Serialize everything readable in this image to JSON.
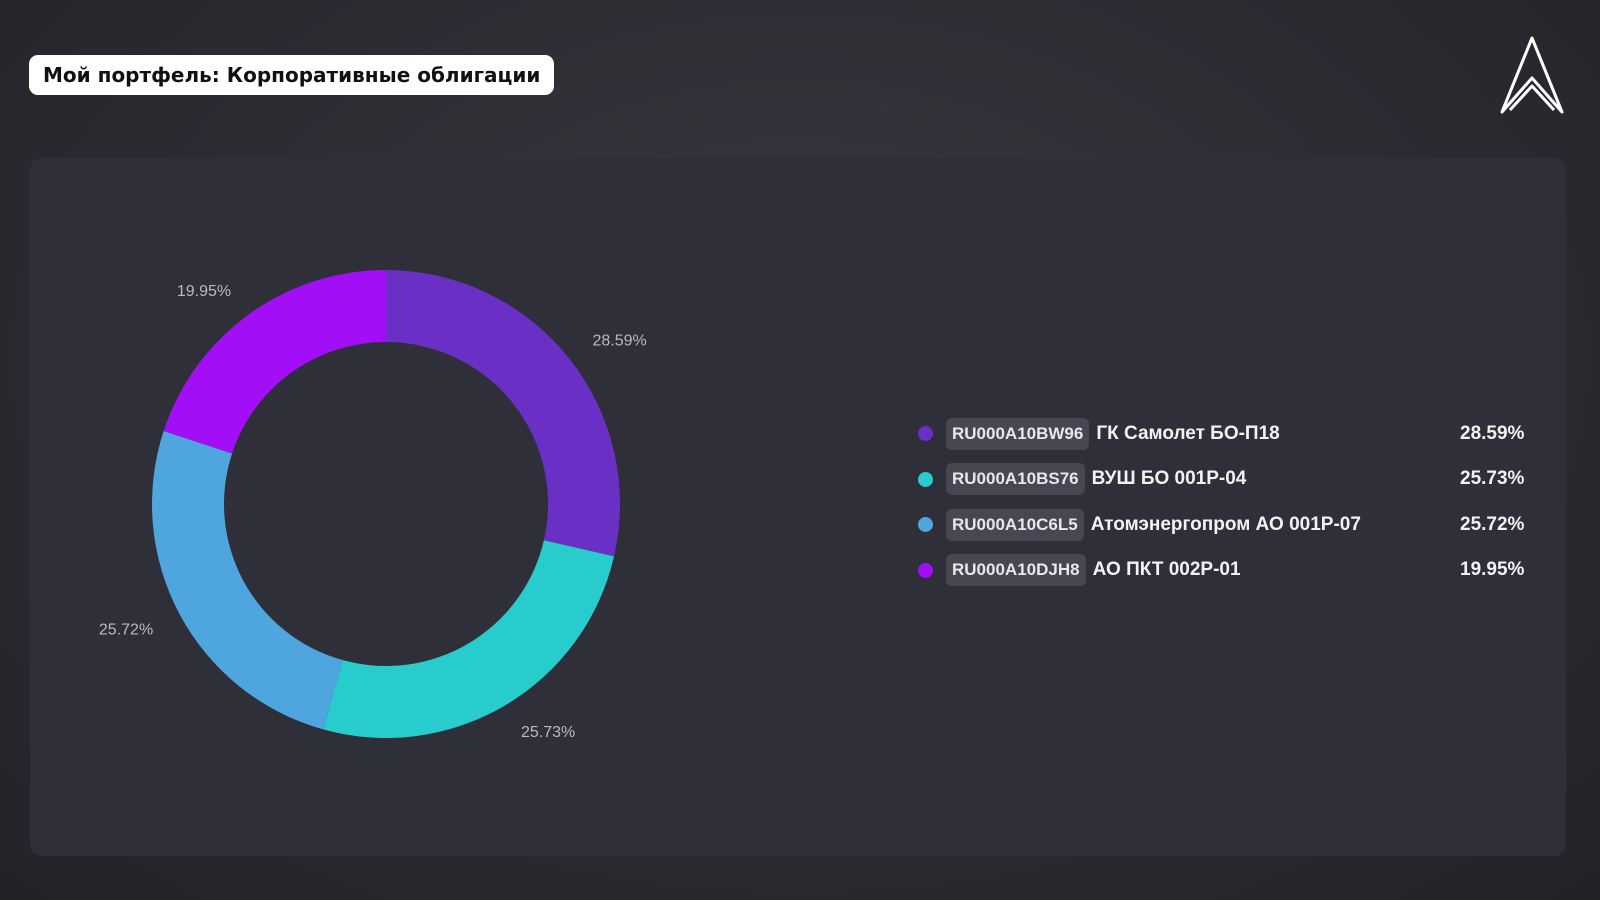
{
  "header": {
    "title": "Мой портфель: Корпоративные облигации"
  },
  "logo": {
    "icon": "double-chevron-up-logo"
  },
  "chart_data": {
    "type": "pie",
    "donut": true,
    "legend_placement": "right",
    "series": [
      {
        "code": "RU000A10BW96",
        "name": "ГК Самолет БО-П18",
        "value": 28.59,
        "label": "28.59%",
        "color": "#6a2fc4"
      },
      {
        "code": "RU000A10BS76",
        "name": "ВУШ БО 001Р-04",
        "value": 25.73,
        "label": "25.73%",
        "color": "#28cccc"
      },
      {
        "code": "RU000A10C6L5",
        "name": "Атомэнергопром АО 001Р-07",
        "value": 25.72,
        "label": "25.72%",
        "color": "#4fa6de"
      },
      {
        "code": "RU000A10DJH8",
        "name": "АО ПКТ 002Р-01",
        "value": 19.95,
        "label": "19.95%",
        "color": "#a20ff7"
      }
    ]
  }
}
